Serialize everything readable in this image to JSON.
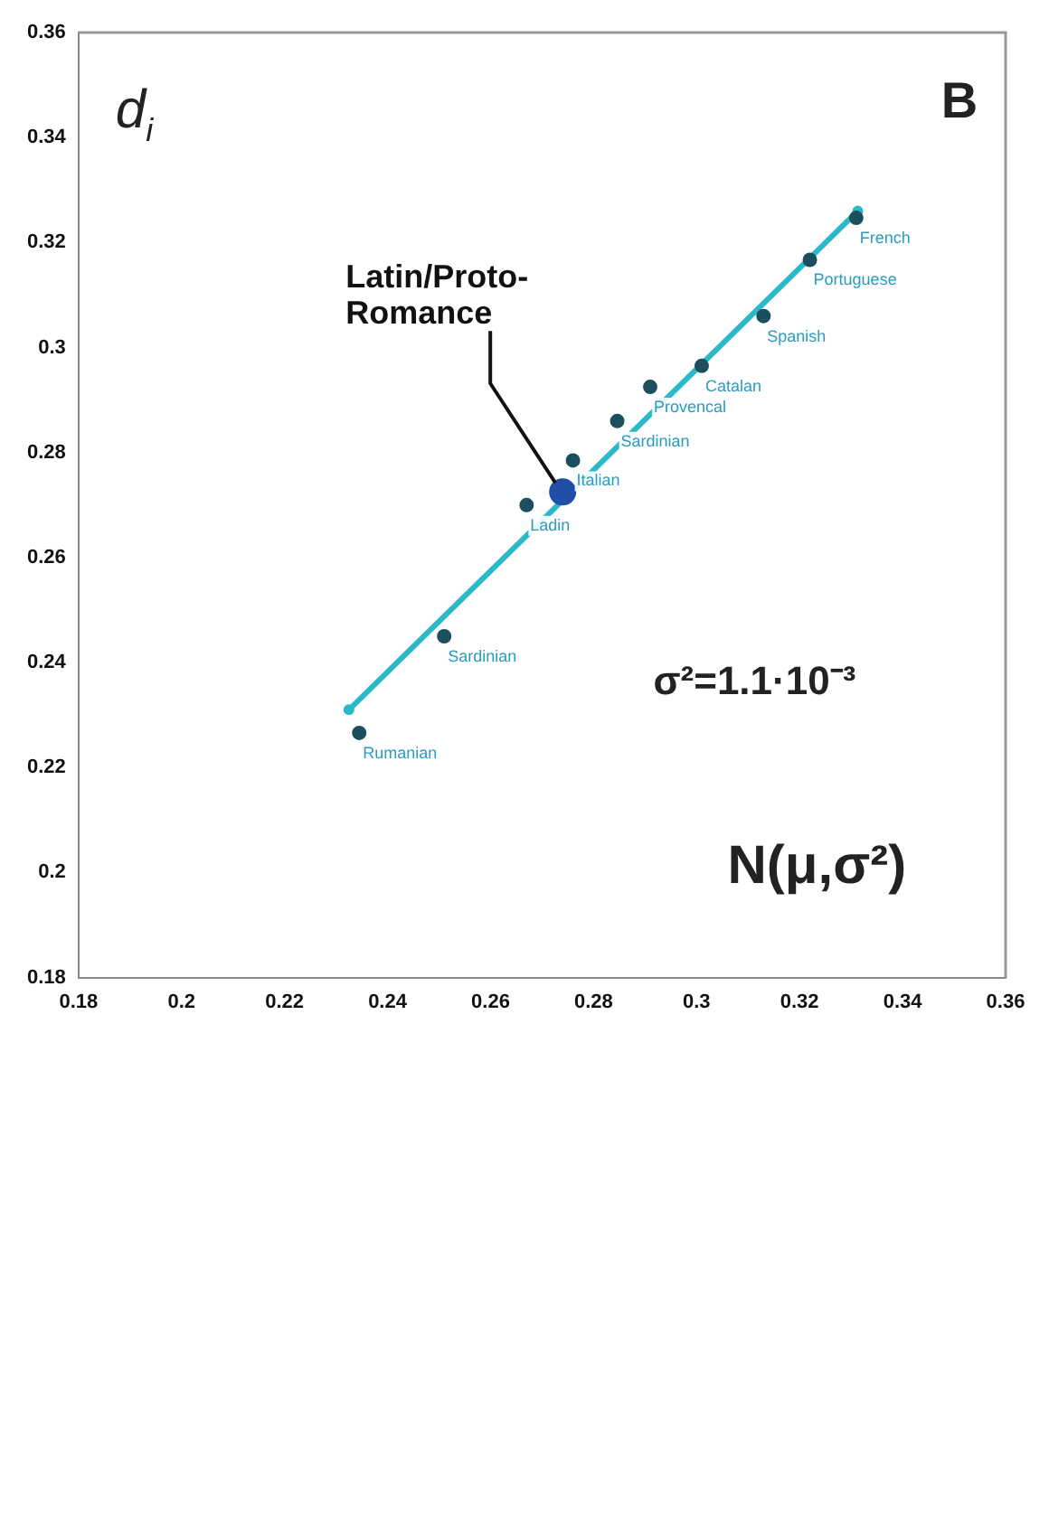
{
  "chart_data": {
    "type": "scatter",
    "xlim": [
      0.18,
      0.36
    ],
    "xticks": [
      0.18,
      0.2,
      0.22,
      0.24,
      0.26,
      0.28,
      0.3,
      0.32,
      0.34,
      0.36
    ],
    "ylim": [
      0.18,
      0.36
    ],
    "yticks": [
      0.18,
      0.2,
      0.22,
      0.24,
      0.26,
      0.28,
      0.3,
      0.32,
      0.34,
      0.36
    ],
    "grid": false,
    "legend": false,
    "marker": "circle",
    "series": [
      {
        "type": "line",
        "color": "#2bb8c8",
        "x": [
          0.2325,
          0.3313
        ],
        "values": [
          0.231,
          0.326
        ]
      },
      {
        "type": "scatter",
        "color": "#1b4f5e",
        "x": [
          0.2345,
          0.251,
          0.267,
          0.276,
          0.2846,
          0.291,
          0.301,
          0.313,
          0.322,
          0.331
        ],
        "values": [
          0.2266,
          0.245,
          0.27,
          0.2785,
          0.286,
          0.2925,
          0.2965,
          0.306,
          0.3167,
          0.3247
        ]
      },
      {
        "type": "scatter",
        "color": "#1f4fa8",
        "x": [
          0.274
        ],
        "values": [
          0.2725
        ]
      }
    ],
    "annotations": [
      "d$_{i}$",
      "B",
      "σ²=1.1·10⁻³",
      "N(μ,σ²)",
      {
        "text": "Latin/Proto-Romance",
        "x": 0.274,
        "y": 0.2725
      },
      {
        "text": "Rumanian",
        "x": 0.2345,
        "y": 0.2266
      },
      {
        "text": "Sardinian",
        "x": 0.251,
        "y": 0.245
      },
      {
        "text": "Ladin",
        "x": 0.267,
        "y": 0.27
      },
      {
        "text": "Italian",
        "x": 0.276,
        "y": 0.2785
      },
      {
        "text": "Sardinian",
        "x": 0.2846,
        "y": 0.286
      },
      {
        "text": "Provencal",
        "x": 0.291,
        "y": 0.2925
      },
      {
        "text": "Catalan",
        "x": 0.301,
        "y": 0.2965
      },
      {
        "text": "Spanish",
        "x": 0.313,
        "y": 0.306
      },
      {
        "text": "Portuguese",
        "x": 0.322,
        "y": 0.3167
      },
      {
        "text": "French",
        "x": 0.331,
        "y": 0.3247
      }
    ]
  }
}
